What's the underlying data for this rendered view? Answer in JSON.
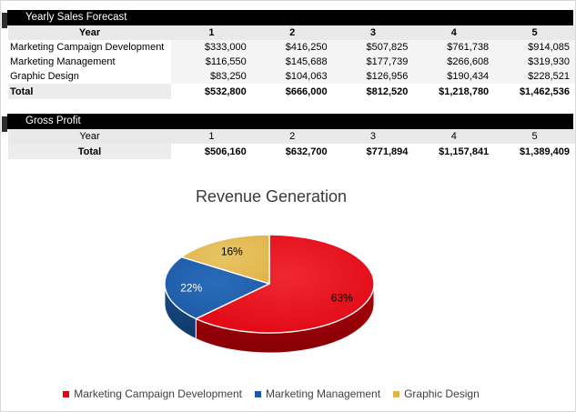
{
  "tables": [
    {
      "title": "Yearly Sales Forecast",
      "year_label": "Year",
      "year_cols": [
        "1",
        "2",
        "3",
        "4",
        "5"
      ],
      "year_bold": true,
      "rows": [
        {
          "label": "Marketing Campaign Development",
          "values": [
            "$333,000",
            "$416,250",
            "$507,825",
            "$761,738",
            "$914,085"
          ]
        },
        {
          "label": "Marketing Management",
          "values": [
            "$116,550",
            "$145,688",
            "$177,739",
            "$266,608",
            "$319,930"
          ]
        },
        {
          "label": "Graphic Design",
          "values": [
            "$83,250",
            "$104,063",
            "$126,956",
            "$190,434",
            "$228,521"
          ]
        }
      ],
      "total": {
        "label": "Total",
        "values": [
          "$532,800",
          "$666,000",
          "$812,520",
          "$1,218,780",
          "$1,462,536"
        ],
        "center_label": false
      }
    },
    {
      "title": "Gross Profit",
      "year_label": "Year",
      "year_cols": [
        "1",
        "2",
        "3",
        "4",
        "5"
      ],
      "year_bold": false,
      "rows": [],
      "total": {
        "label": "Total",
        "values": [
          "$506,160",
          "$632,700",
          "$771,894",
          "$1,157,841",
          "$1,389,409"
        ],
        "center_label": true
      }
    }
  ],
  "chart_data": {
    "type": "pie",
    "effect": "3d",
    "title": "Revenue Generation",
    "legend_position": "bottom",
    "start_angle_deg": 0,
    "direction": "clockwise",
    "slices": [
      {
        "label": "Marketing Campaign Development",
        "value": 63,
        "display": "63%",
        "color": "#e00713",
        "color_inner": "#ef2832",
        "side_color_top": "#b00009",
        "side_color_bottom": "#850006",
        "label_color": "#000000"
      },
      {
        "label": "Marketing Management",
        "value": 22,
        "display": "22%",
        "color": "#1d5aa5",
        "color_inner": "#2a6cba",
        "side_color_top": "#174a87",
        "side_color_bottom": "#11396a",
        "label_color": "#ffffff"
      },
      {
        "label": "Graphic Design",
        "value": 16,
        "display": "16%",
        "color": "#e0b44a",
        "color_inner": "#e8c566",
        "side_color_top": "#c49a33",
        "side_color_bottom": "#a87f24",
        "label_color": "#000000"
      }
    ]
  }
}
